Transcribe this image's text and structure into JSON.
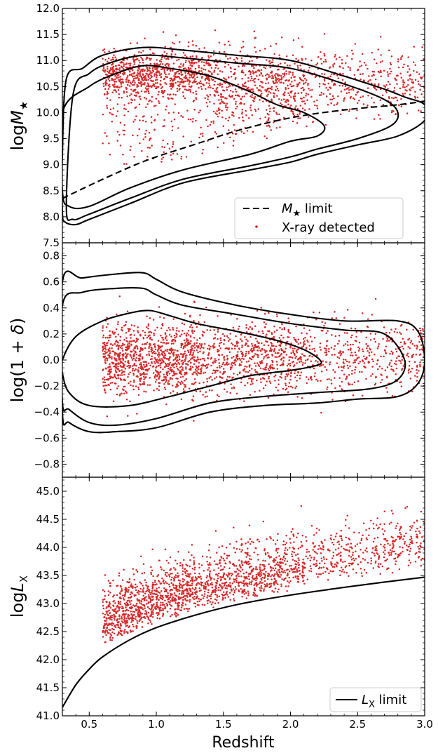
{
  "chart_data": {
    "type": "scatter",
    "xlabel": "Redshift",
    "x_ticks": [
      0.5,
      1.0,
      1.5,
      2.0,
      2.5,
      3.0
    ],
    "x_tick_labels": [
      "0.5",
      "1.0",
      "1.5",
      "2.0",
      "2.5",
      "3.0"
    ],
    "xlim": [
      0.3,
      3.0
    ],
    "point_color": "#d62728",
    "panels": [
      {
        "id": "mass",
        "ylabel_main": "log",
        "ylabel_var": "M",
        "ylabel_sub": "★",
        "ylim": [
          7.5,
          12.0
        ],
        "y_ticks": [
          7.5,
          8.0,
          8.5,
          9.0,
          9.5,
          10.0,
          10.5,
          11.0,
          11.5,
          12.0
        ],
        "y_tick_labels": [
          "7.5",
          "8.0",
          "8.5",
          "9.0",
          "9.5",
          "10.0",
          "10.5",
          "11.0",
          "11.5",
          "12.0"
        ],
        "limit_curve": {
          "x": [
            0.3,
            0.5,
            0.8,
            1.0,
            1.3,
            1.6,
            2.0,
            2.4,
            2.8,
            3.0
          ],
          "y": [
            8.35,
            8.6,
            8.95,
            9.15,
            9.4,
            9.65,
            9.9,
            10.05,
            10.15,
            10.22
          ]
        },
        "contours": [
          {
            "x": [
              0.33,
              0.45,
              0.6,
              0.9,
              1.2,
              1.6,
              2.0,
              2.4,
              2.7,
              2.85,
              3.0,
              3.0,
              2.8,
              2.5,
              2.2,
              2.0,
              1.7,
              1.2,
              0.8,
              0.5,
              0.4,
              0.32,
              0.3,
              0.3,
              0.33
            ],
            "y": [
              10.65,
              10.85,
              11.1,
              11.25,
              11.2,
              11.1,
              11.0,
              10.7,
              10.45,
              10.3,
              10.15,
              9.85,
              9.55,
              9.38,
              9.2,
              9.05,
              8.9,
              8.65,
              8.25,
              7.95,
              7.85,
              7.9,
              8.1,
              9.2,
              10.65
            ]
          },
          {
            "x": [
              0.38,
              0.5,
              0.65,
              0.9,
              1.2,
              1.6,
              2.0,
              2.4,
              2.7,
              2.8,
              2.75,
              2.5,
              2.2,
              2.0,
              1.7,
              1.2,
              0.8,
              0.5,
              0.38,
              0.33,
              0.38
            ],
            "y": [
              10.35,
              10.75,
              10.95,
              11.1,
              11.05,
              10.95,
              10.85,
              10.55,
              10.25,
              10.0,
              9.75,
              9.5,
              9.3,
              9.15,
              8.98,
              8.72,
              8.35,
              8.05,
              7.95,
              8.2,
              10.35
            ]
          },
          {
            "x": [
              0.3,
              0.5,
              0.7,
              0.9,
              1.1,
              1.4,
              1.7,
              1.9,
              2.1,
              2.25,
              2.2,
              2.0,
              1.7,
              1.2,
              0.8,
              0.5,
              0.35,
              0.3,
              0.3
            ],
            "y": [
              10.0,
              10.5,
              10.75,
              10.9,
              10.85,
              10.7,
              10.4,
              10.15,
              10.0,
              9.75,
              9.55,
              9.45,
              9.2,
              8.9,
              8.55,
              8.2,
              8.2,
              8.5,
              10.0
            ]
          }
        ],
        "legend": [
          {
            "type": "dashed-line",
            "text_math": "M",
            "text_sub": "★",
            "text_rest": " limit"
          },
          {
            "type": "marker",
            "text": "X-ray detected"
          }
        ]
      },
      {
        "id": "overdensity",
        "ylabel_main": "log(1 + ",
        "ylabel_var": "δ",
        "ylabel_end": ")",
        "ylim": [
          -0.9,
          0.9
        ],
        "y_ticks": [
          -0.8,
          -0.6,
          -0.4,
          -0.2,
          0.0,
          0.2,
          0.4,
          0.6,
          0.8
        ],
        "y_tick_labels": [
          "−0.8",
          "−0.6",
          "−0.4",
          "−0.2",
          "0.0",
          "0.2",
          "0.4",
          "0.6",
          "0.8"
        ],
        "contours": [
          {
            "x": [
              0.3,
              0.45,
              0.7,
              0.9,
              1.0,
              1.2,
              1.6,
              2.0,
              2.4,
              2.8,
              2.95,
              3.0,
              2.95,
              2.8,
              2.5,
              2.2,
              1.8,
              1.4,
              1.0,
              0.7,
              0.5,
              0.35,
              0.3,
              0.3
            ],
            "y": [
              0.6,
              0.63,
              0.66,
              0.67,
              0.62,
              0.52,
              0.42,
              0.35,
              0.3,
              0.3,
              0.22,
              0.0,
              -0.18,
              -0.28,
              -0.3,
              -0.33,
              -0.35,
              -0.4,
              -0.52,
              -0.55,
              -0.55,
              -0.48,
              -0.4,
              0.6
            ]
          },
          {
            "x": [
              0.3,
              0.45,
              0.7,
              0.9,
              1.0,
              1.2,
              1.6,
              2.0,
              2.4,
              2.7,
              2.85,
              2.8,
              2.6,
              2.2,
              1.8,
              1.4,
              1.0,
              0.7,
              0.5,
              0.35,
              0.3,
              0.3
            ],
            "y": [
              0.42,
              0.52,
              0.55,
              0.55,
              0.5,
              0.42,
              0.35,
              0.28,
              0.23,
              0.2,
              0.0,
              -0.15,
              -0.22,
              -0.25,
              -0.28,
              -0.33,
              -0.45,
              -0.5,
              -0.48,
              -0.38,
              -0.32,
              0.42
            ]
          },
          {
            "x": [
              0.3,
              0.4,
              0.6,
              0.8,
              0.95,
              1.1,
              1.3,
              1.6,
              1.9,
              2.1,
              2.22,
              2.2,
              2.0,
              1.7,
              1.4,
              1.1,
              0.8,
              0.5,
              0.35,
              0.3,
              0.3
            ],
            "y": [
              0.0,
              0.18,
              0.3,
              0.36,
              0.38,
              0.34,
              0.28,
              0.22,
              0.15,
              0.08,
              0.0,
              -0.04,
              -0.08,
              -0.12,
              -0.2,
              -0.28,
              -0.35,
              -0.35,
              -0.25,
              -0.1,
              0.0
            ]
          }
        ]
      },
      {
        "id": "luminosity",
        "ylabel_main": "log",
        "ylabel_var": "L",
        "ylabel_sub": "X",
        "ylim": [
          41.0,
          45.25
        ],
        "y_ticks": [
          41.0,
          41.5,
          42.0,
          42.5,
          43.0,
          43.5,
          44.0,
          44.5,
          45.0
        ],
        "y_tick_labels": [
          "41.0",
          "41.5",
          "42.0",
          "42.5",
          "43.0",
          "43.5",
          "44.0",
          "44.5",
          "45.0"
        ],
        "limit_curve": {
          "x": [
            0.3,
            0.4,
            0.5,
            0.6,
            0.8,
            1.0,
            1.3,
            1.6,
            2.0,
            2.5,
            3.0
          ],
          "y": [
            41.15,
            41.55,
            41.83,
            42.05,
            42.35,
            42.57,
            42.8,
            42.98,
            43.15,
            43.32,
            43.47
          ]
        },
        "legend": [
          {
            "type": "solid-line",
            "text_math": "L",
            "text_sub": "X",
            "text_rest": " limit"
          }
        ]
      }
    ]
  }
}
